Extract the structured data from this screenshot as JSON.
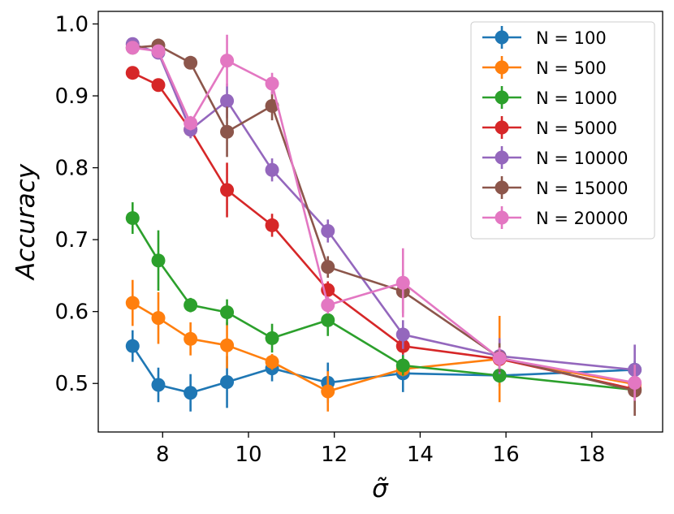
{
  "chart_data": {
    "type": "line",
    "xlabel": "σ̃",
    "ylabel": "Accuracy",
    "xlim": [
      6.5,
      19.65
    ],
    "ylim": [
      0.4325,
      1.0175
    ],
    "xticks": [
      8,
      10,
      12,
      14,
      16,
      18
    ],
    "yticks": [
      0.5,
      0.6,
      0.7,
      0.8,
      0.9,
      1.0
    ],
    "xtick_labels": [
      "8",
      "10",
      "12",
      "14",
      "16",
      "18"
    ],
    "ytick_labels": [
      "0.5",
      "0.6",
      "0.7",
      "0.8",
      "0.9",
      "1.0"
    ],
    "grid": false,
    "legend_position": "top-right",
    "x": [
      7.3,
      7.9,
      8.65,
      9.5,
      10.55,
      11.85,
      13.6,
      15.85,
      19.0
    ],
    "series": [
      {
        "name": "N = 100",
        "color": "#1f77b4",
        "values": [
          0.552,
          0.498,
          0.487,
          0.502,
          0.521,
          0.501,
          0.514,
          0.511,
          0.519
        ],
        "errors": [
          0.022,
          0.024,
          0.026,
          0.036,
          0.018,
          0.028,
          0.026,
          0.015,
          0.012
        ]
      },
      {
        "name": "N = 500",
        "color": "#ff7f0e",
        "values": [
          0.612,
          0.591,
          0.562,
          0.553,
          0.53,
          0.489,
          0.52,
          0.534,
          0.499
        ],
        "errors": [
          0.032,
          0.036,
          0.023,
          0.032,
          0.011,
          0.028,
          0.01,
          0.06,
          0.01
        ]
      },
      {
        "name": "N = 1000",
        "color": "#2ca02c",
        "values": [
          0.73,
          0.671,
          0.609,
          0.599,
          0.563,
          0.588,
          0.525,
          0.511,
          0.491
        ],
        "errors": [
          0.022,
          0.042,
          0.01,
          0.018,
          0.02,
          0.022,
          0.014,
          0.01,
          0.01
        ]
      },
      {
        "name": "N = 5000",
        "color": "#d62728",
        "values": [
          0.932,
          0.915,
          0.853,
          0.769,
          0.72,
          0.63,
          0.552,
          0.534,
          0.492
        ],
        "errors": [
          0.008,
          0.008,
          0.01,
          0.038,
          0.016,
          0.012,
          0.012,
          0.01,
          0.01
        ]
      },
      {
        "name": "N = 10000",
        "color": "#9467bd",
        "values": [
          0.972,
          0.96,
          0.853,
          0.893,
          0.797,
          0.712,
          0.568,
          0.538,
          0.519
        ],
        "errors": [
          0.008,
          0.008,
          0.012,
          0.024,
          0.016,
          0.016,
          0.02,
          0.025,
          0.035
        ]
      },
      {
        "name": "N = 15000",
        "color": "#8c564b",
        "values": [
          0.967,
          0.97,
          0.946,
          0.85,
          0.886,
          0.662,
          0.628,
          0.536,
          0.49
        ],
        "errors": [
          0.008,
          0.008,
          0.008,
          0.035,
          0.02,
          0.015,
          0.03,
          0.02,
          0.035
        ]
      },
      {
        "name": "N = 20000",
        "color": "#e377c2",
        "values": [
          0.967,
          0.962,
          0.862,
          0.949,
          0.917,
          0.609,
          0.64,
          0.535,
          0.501
        ],
        "errors": [
          0.008,
          0.008,
          0.01,
          0.036,
          0.015,
          0.012,
          0.048,
          0.015,
          0.025
        ]
      }
    ]
  }
}
